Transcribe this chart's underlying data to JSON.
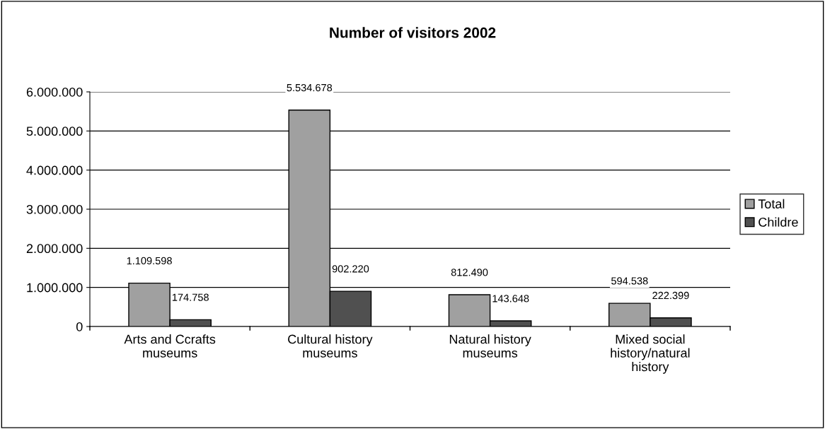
{
  "chart_data": {
    "type": "bar",
    "title": "Number of visitors 2002",
    "categories": [
      "Arts and Ccrafts\nmuseums",
      "Cultural history\nmuseums",
      "Natural history\nmuseums",
      "Mixed social\nhistory/natural\nhistory"
    ],
    "series": [
      {
        "name": "Total",
        "color": "#a0a0a0",
        "values": [
          1109598,
          5534678,
          812490,
          594538
        ],
        "value_labels": [
          "1.109.598",
          "5.534.678",
          "812.490",
          "594.538"
        ]
      },
      {
        "name": "Childre",
        "color": "#505050",
        "values": [
          174758,
          902220,
          143648,
          222399
        ],
        "value_labels": [
          "174.758",
          "902.220",
          "143.648",
          "222.399"
        ]
      }
    ],
    "ylim": [
      0,
      6000000
    ],
    "yticks": [
      0,
      {
        "value": 1000000,
        "label": "1.000.000"
      },
      {
        "value": 2000000,
        "label": "2.000.000"
      },
      {
        "value": 3000000,
        "label": "3.000.000"
      },
      {
        "value": 4000000,
        "label": "4.000.000"
      },
      {
        "value": 5000000,
        "label": "5.000.000"
      },
      {
        "value": 6000000,
        "label": "6.000.000"
      }
    ],
    "grid": "y",
    "legend": "right"
  }
}
